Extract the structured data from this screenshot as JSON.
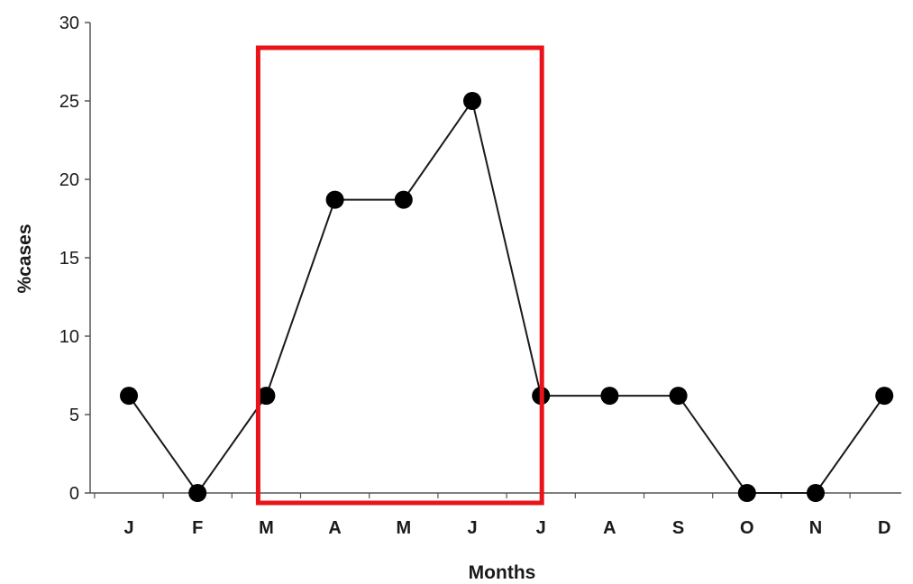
{
  "chart_data": {
    "type": "line",
    "title": "",
    "xlabel": "Months",
    "ylabel": "%cases",
    "categories": [
      "J",
      "F",
      "M",
      "A",
      "M",
      "J",
      "J",
      "A",
      "S",
      "O",
      "N",
      "D"
    ],
    "series": [
      {
        "values": [
          6.2,
          0,
          6.2,
          18.7,
          18.7,
          25,
          6.2,
          6.2,
          6.2,
          0,
          0,
          6.2
        ]
      }
    ],
    "ylim": [
      0,
      30
    ],
    "yticks": [
      0,
      5,
      10,
      15,
      20,
      25,
      30
    ],
    "grid": false,
    "legend": "none",
    "highlight": {
      "from_category_index": 2,
      "to_category_index": 6,
      "color": "#e8141a"
    },
    "colors": {
      "line": "#1a1a1a",
      "marker": "#000000",
      "axis": "#555555"
    }
  }
}
